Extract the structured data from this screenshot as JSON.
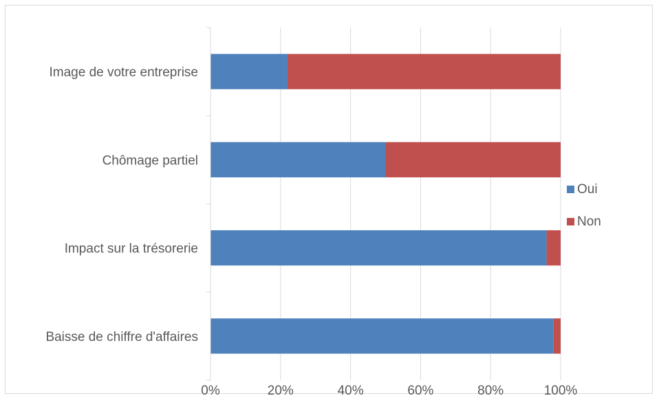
{
  "chart_data": {
    "type": "bar",
    "orientation": "horizontal",
    "stacked": "percent",
    "categories": [
      "Image de votre entreprise",
      "Chômage partiel",
      "Impact sur la trésorerie",
      "Baisse de chiffre d'affaires"
    ],
    "series": [
      {
        "name": "Oui",
        "color": "#4f81bd",
        "values": [
          22,
          50,
          96,
          98
        ]
      },
      {
        "name": "Non",
        "color": "#c0504d",
        "values": [
          78,
          50,
          4,
          2
        ]
      }
    ],
    "x_ticks": [
      "0%",
      "20%",
      "40%",
      "60%",
      "80%",
      "100%"
    ],
    "xlim": [
      0,
      100
    ],
    "grid": true,
    "legend_position": "right"
  }
}
